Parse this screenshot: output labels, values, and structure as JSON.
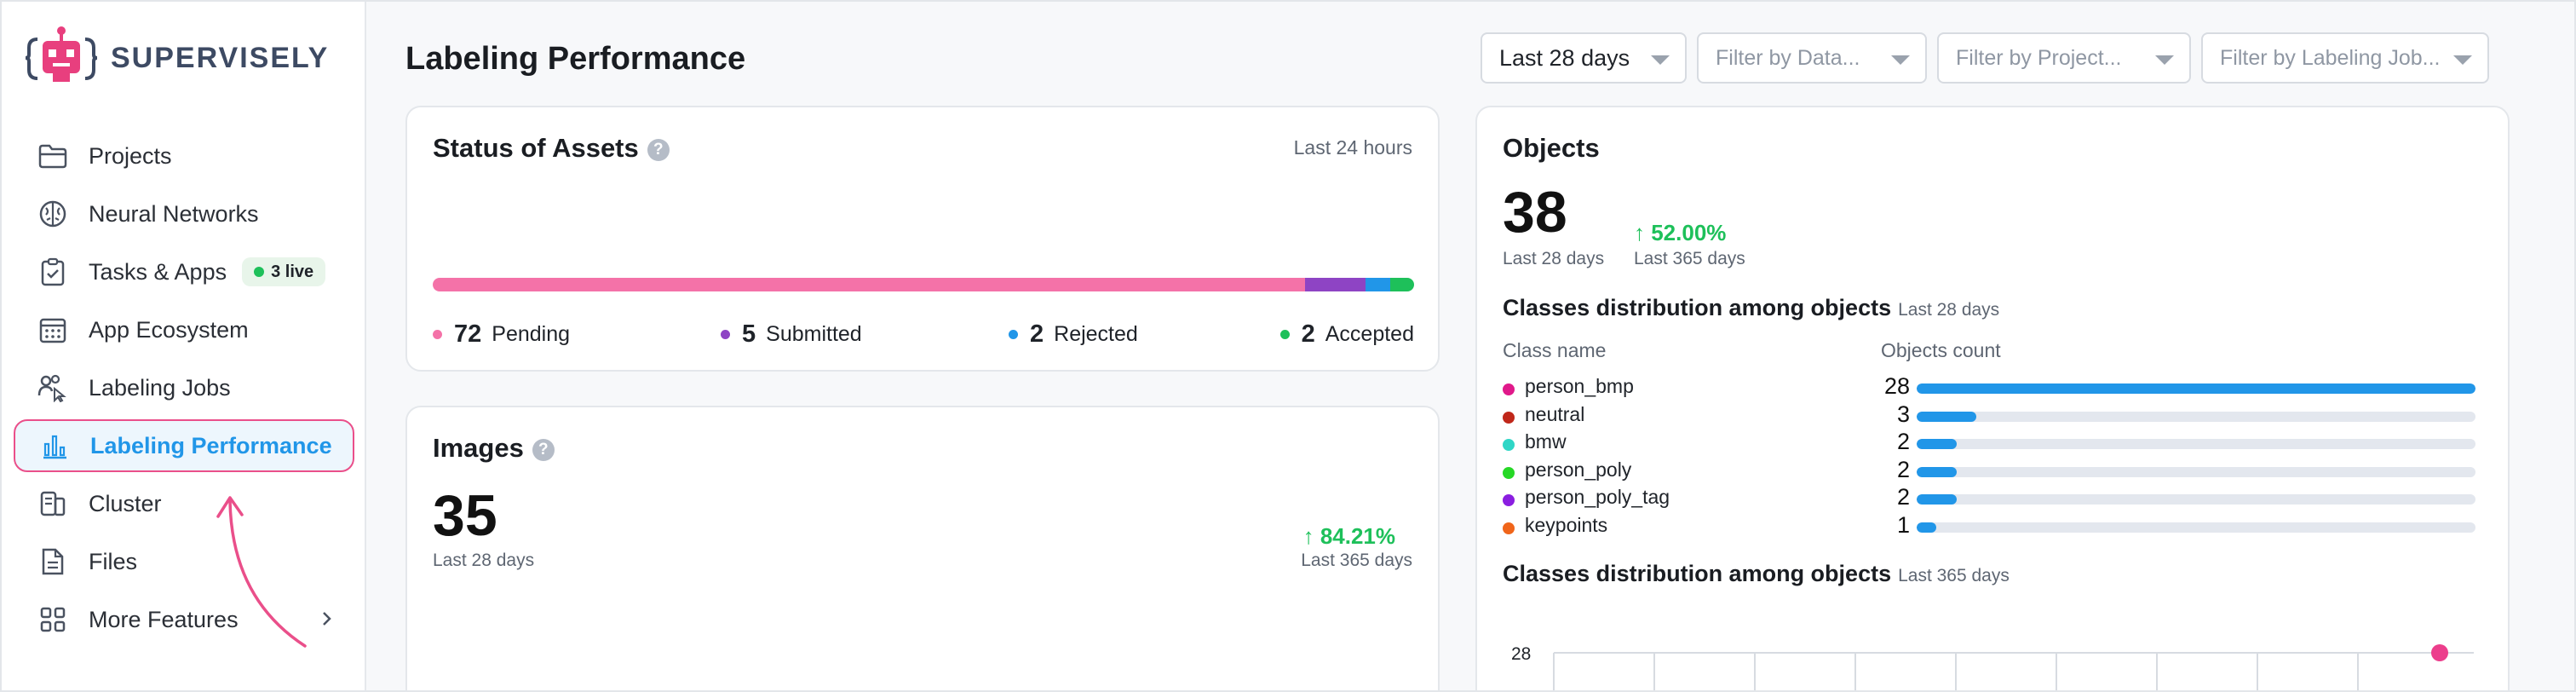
{
  "brand": {
    "name": "SUPERVISELY"
  },
  "sidebar": {
    "items": [
      {
        "label": "Projects",
        "icon": "folder-icon"
      },
      {
        "label": "Neural Networks",
        "icon": "brain-icon"
      },
      {
        "label": "Tasks & Apps",
        "icon": "clipboard-check-icon",
        "badge": "3 live"
      },
      {
        "label": "App Ecosystem",
        "icon": "calendar-grid-icon"
      },
      {
        "label": "Labeling Jobs",
        "icon": "people-cursor-icon"
      },
      {
        "label": "Labeling Performance",
        "icon": "bar-chart-icon",
        "active": true
      },
      {
        "label": "Cluster",
        "icon": "server-icon"
      },
      {
        "label": "Files",
        "icon": "file-icon"
      },
      {
        "label": "More Features",
        "icon": "grid-icon"
      }
    ]
  },
  "header": {
    "title": "Labeling Performance",
    "filters": {
      "period": "Last 28 days",
      "dataset_placeholder": "Filter by Data...",
      "project_placeholder": "Filter by Project...",
      "job_placeholder": "Filter by Labeling Job..."
    }
  },
  "status_of_assets": {
    "title": "Status of Assets",
    "period": "Last 24 hours",
    "segments": [
      {
        "count": 72,
        "label": "Pending",
        "color": "#f472a8"
      },
      {
        "count": 5,
        "label": "Submitted",
        "color": "#8e44c4"
      },
      {
        "count": 2,
        "label": "Rejected",
        "color": "#2196e8"
      },
      {
        "count": 2,
        "label": "Accepted",
        "color": "#1ec05a"
      }
    ]
  },
  "images": {
    "title": "Images",
    "count": "35",
    "count_period": "Last 28 days",
    "change": "↑ 84.21%",
    "change_period": "Last 365 days"
  },
  "objects": {
    "title": "Objects",
    "count": "38",
    "count_period": "Last 28 days",
    "change": "↑ 52.00%",
    "change_period": "Last 365 days",
    "distribution": {
      "title": "Classes distribution among objects",
      "period": "Last 28 days",
      "col_class": "Class name",
      "col_count": "Objects count",
      "max": 28,
      "rows": [
        {
          "name": "person_bmp",
          "count": 28,
          "color": "#e0198a"
        },
        {
          "name": "neutral",
          "count": 3,
          "color": "#c0271a"
        },
        {
          "name": "bmw",
          "count": 2,
          "color": "#2fd6c6"
        },
        {
          "name": "person_poly",
          "count": 2,
          "color": "#26d826"
        },
        {
          "name": "person_poly_tag",
          "count": 2,
          "color": "#8a1ee0"
        },
        {
          "name": "keypoints",
          "count": 1,
          "color": "#f0651a"
        }
      ]
    },
    "distribution_year": {
      "title": "Classes distribution among objects",
      "period": "Last 365 days",
      "y_tick": "28"
    }
  },
  "chart_data": {
    "type": "bar",
    "title": "Classes distribution among objects",
    "categories": [
      "person_bmp",
      "neutral",
      "bmw",
      "person_poly",
      "person_poly_tag",
      "keypoints"
    ],
    "values": [
      28,
      3,
      2,
      2,
      2,
      1
    ],
    "xlabel": "Class name",
    "ylabel": "Objects count"
  }
}
